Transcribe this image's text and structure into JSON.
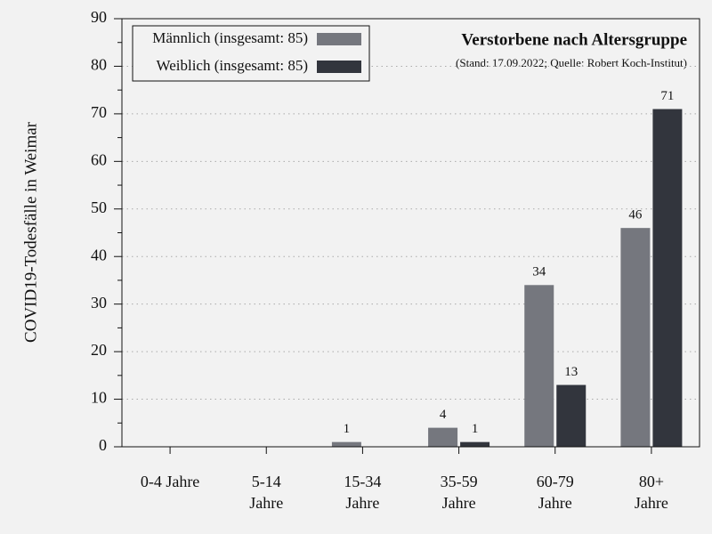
{
  "chart_data": {
    "type": "bar",
    "title": "Verstorbene nach Altersgruppe",
    "subtitle": "(Stand: 17.09.2022; Quelle: Robert Koch-Institut)",
    "ylabel": "COVID19-Todesfälle in Weimar",
    "categories": [
      "0-4 Jahre",
      "5-14 Jahre",
      "15-34 Jahre",
      "35-59 Jahre",
      "60-79 Jahre",
      "80+ Jahre"
    ],
    "series": [
      {
        "name": "Männlich (insgesamt: 85)",
        "color": "#75777e",
        "values": [
          0,
          0,
          1,
          4,
          34,
          46
        ]
      },
      {
        "name": "Weiblich (insgesamt: 85)",
        "color": "#32353d",
        "values": [
          0,
          0,
          0,
          1,
          13,
          71
        ]
      }
    ],
    "ylim": [
      0,
      90
    ],
    "yticks": [
      0,
      10,
      20,
      30,
      40,
      50,
      60,
      70,
      80,
      90
    ],
    "grid": true,
    "legend": "upper left"
  }
}
